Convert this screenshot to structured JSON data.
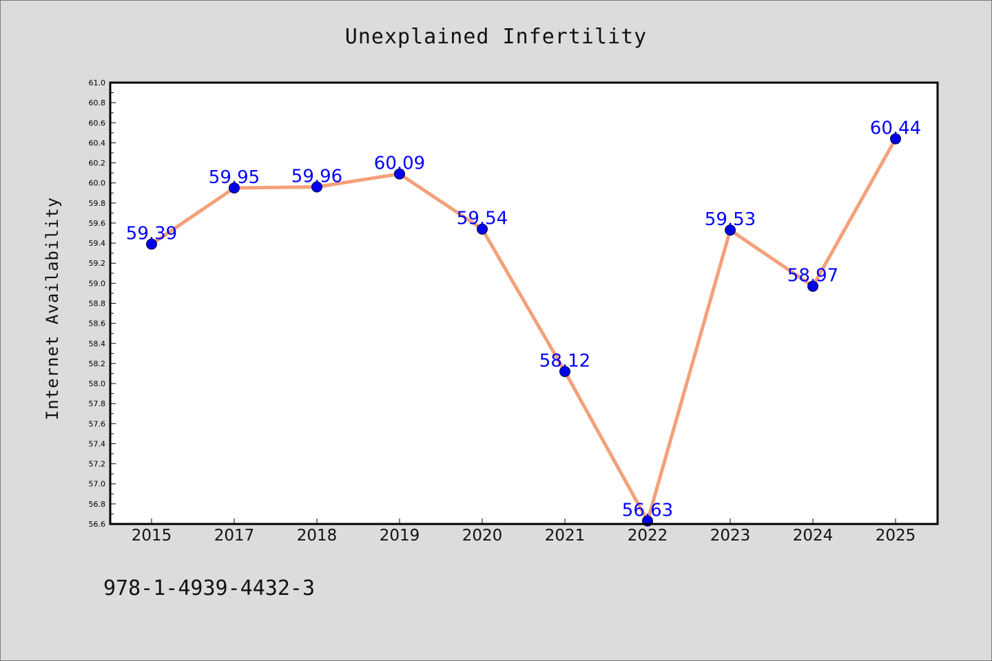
{
  "chart_data": {
    "type": "line",
    "title": "Unexplained Infertility",
    "xlabel": "",
    "ylabel": "Internet Availability",
    "categories": [
      "2015",
      "2017",
      "2018",
      "2019",
      "2020",
      "2021",
      "2022",
      "2023",
      "2024",
      "2025"
    ],
    "series": [
      {
        "values": [
          59.39,
          59.95,
          59.96,
          60.09,
          59.54,
          58.12,
          56.63,
          59.53,
          58.97,
          60.44
        ],
        "labels": [
          "59.39",
          "59.95",
          "59.96",
          "60.09",
          "59.54",
          "58.12",
          "56.63",
          "59.53",
          "58.97",
          "60.44"
        ],
        "line_color": "#f5a07a",
        "marker_color": "#0000ee"
      }
    ],
    "ylim": [
      56.6,
      61.0
    ],
    "yticks": [
      "56.6",
      "56.8",
      "57.0",
      "57.2",
      "57.4",
      "57.6",
      "57.8",
      "58.0",
      "58.2",
      "58.4",
      "58.6",
      "58.8",
      "59.0",
      "59.2",
      "59.4",
      "59.6",
      "59.8",
      "60.0",
      "60.2",
      "60.4",
      "60.6",
      "60.8",
      "61.0"
    ],
    "grid": false,
    "legend": "none",
    "data_label_color": "#0000ff"
  },
  "footer": {
    "code": "978-1-4939-4432-3"
  },
  "colors": {
    "background": "#dcdcdc",
    "plot_area": "#ffffff"
  }
}
